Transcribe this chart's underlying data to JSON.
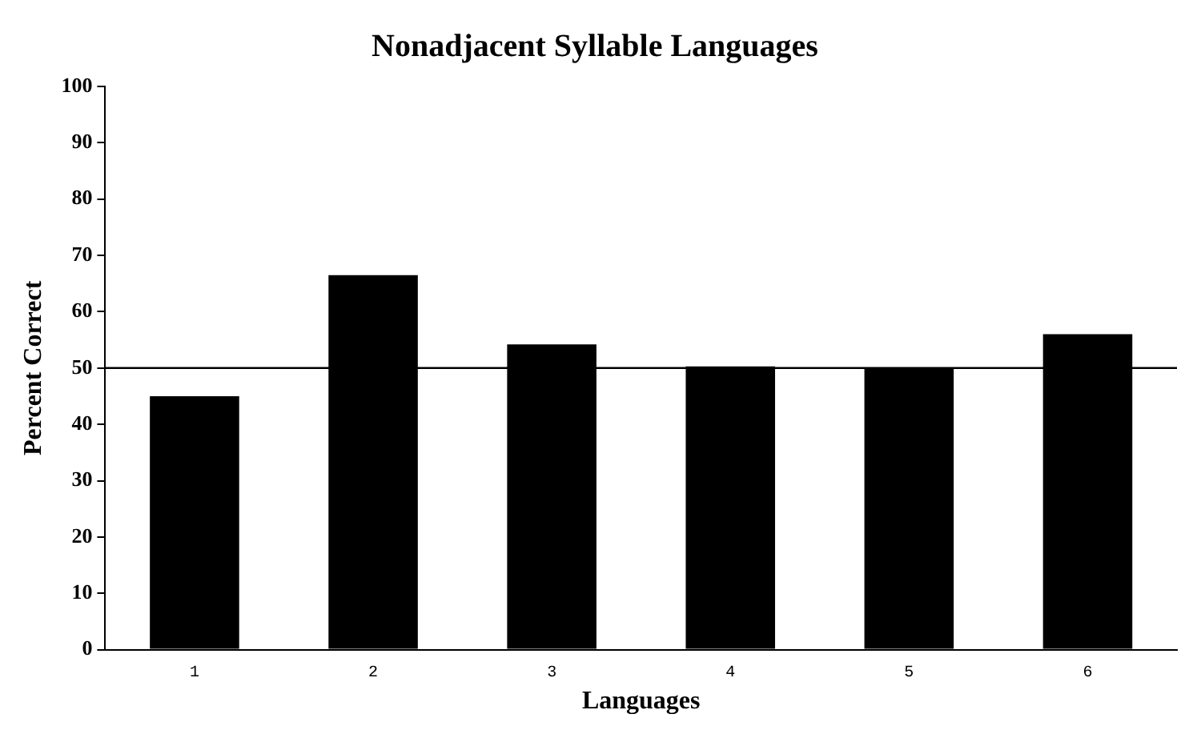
{
  "chart_data": {
    "type": "bar",
    "title": "Nonadjacent Syllable Languages",
    "xlabel": "Languages",
    "ylabel": "Percent Correct",
    "categories": [
      "1",
      "2",
      "3",
      "4",
      "5",
      "6"
    ],
    "values": [
      45,
      66.5,
      54.2,
      50.3,
      50,
      56
    ],
    "color": "#000000",
    "ylim": [
      0,
      100
    ],
    "yticks": [
      0,
      10,
      20,
      30,
      40,
      50,
      60,
      70,
      80,
      90,
      100
    ],
    "grid": false,
    "ref_lines": [
      {
        "axis": "y",
        "value": 50,
        "color": "#000000"
      }
    ]
  }
}
